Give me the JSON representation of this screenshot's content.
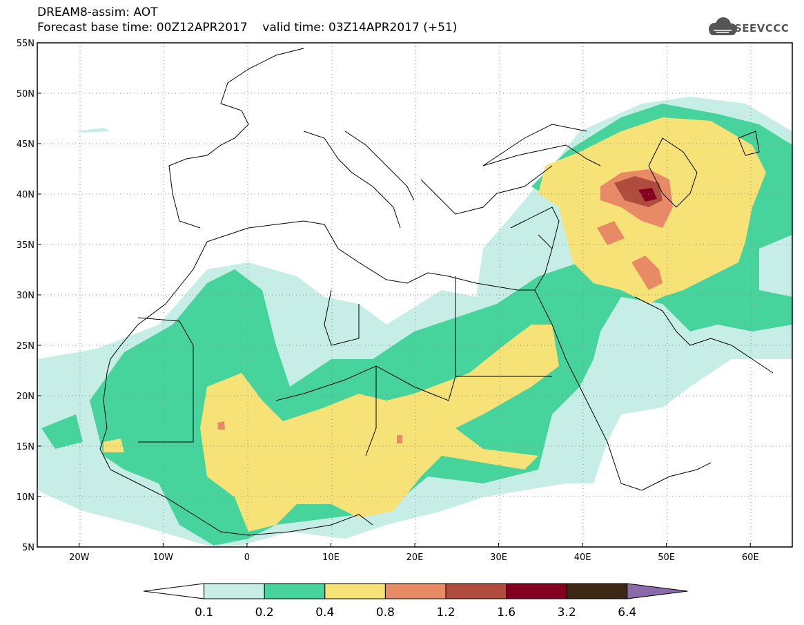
{
  "header": {
    "line1": "DREAM8-assim: AOT",
    "line2": "Forecast base time: 00Z12APR2017    valid time: 03Z14APR2017 (+51)"
  },
  "logo": {
    "text": "SEEVCCC",
    "icon": "cloud-icon"
  },
  "map": {
    "lon_range": [
      -25,
      65
    ],
    "lat_range": [
      5,
      55
    ],
    "lon_ticks": [
      {
        "value": -20,
        "label": "20W"
      },
      {
        "value": -10,
        "label": "10W"
      },
      {
        "value": 0,
        "label": "0"
      },
      {
        "value": 10,
        "label": "10E"
      },
      {
        "value": 20,
        "label": "20E"
      },
      {
        "value": 30,
        "label": "30E"
      },
      {
        "value": 40,
        "label": "40E"
      },
      {
        "value": 50,
        "label": "50E"
      },
      {
        "value": 60,
        "label": "60E"
      }
    ],
    "lat_ticks": [
      {
        "value": 55,
        "label": "55N"
      },
      {
        "value": 50,
        "label": "50N"
      },
      {
        "value": 45,
        "label": "45N"
      },
      {
        "value": 40,
        "label": "40N"
      },
      {
        "value": 35,
        "label": "35N"
      },
      {
        "value": 30,
        "label": "30N"
      },
      {
        "value": 25,
        "label": "25N"
      },
      {
        "value": 20,
        "label": "20N"
      },
      {
        "value": 15,
        "label": "15N"
      },
      {
        "value": 10,
        "label": "10N"
      },
      {
        "value": 5,
        "label": "5N"
      }
    ],
    "grid": "dotted"
  },
  "colorbar": {
    "labels": [
      "0.1",
      "0.2",
      "0.4",
      "0.8",
      "1.2",
      "1.6",
      "3.2",
      "6.4"
    ],
    "colors": [
      "#ffffff",
      "#c6eee6",
      "#46d49c",
      "#f6e276",
      "#e88a66",
      "#b04c3e",
      "#830020",
      "#3c2614",
      "#8a6aa8"
    ]
  }
}
